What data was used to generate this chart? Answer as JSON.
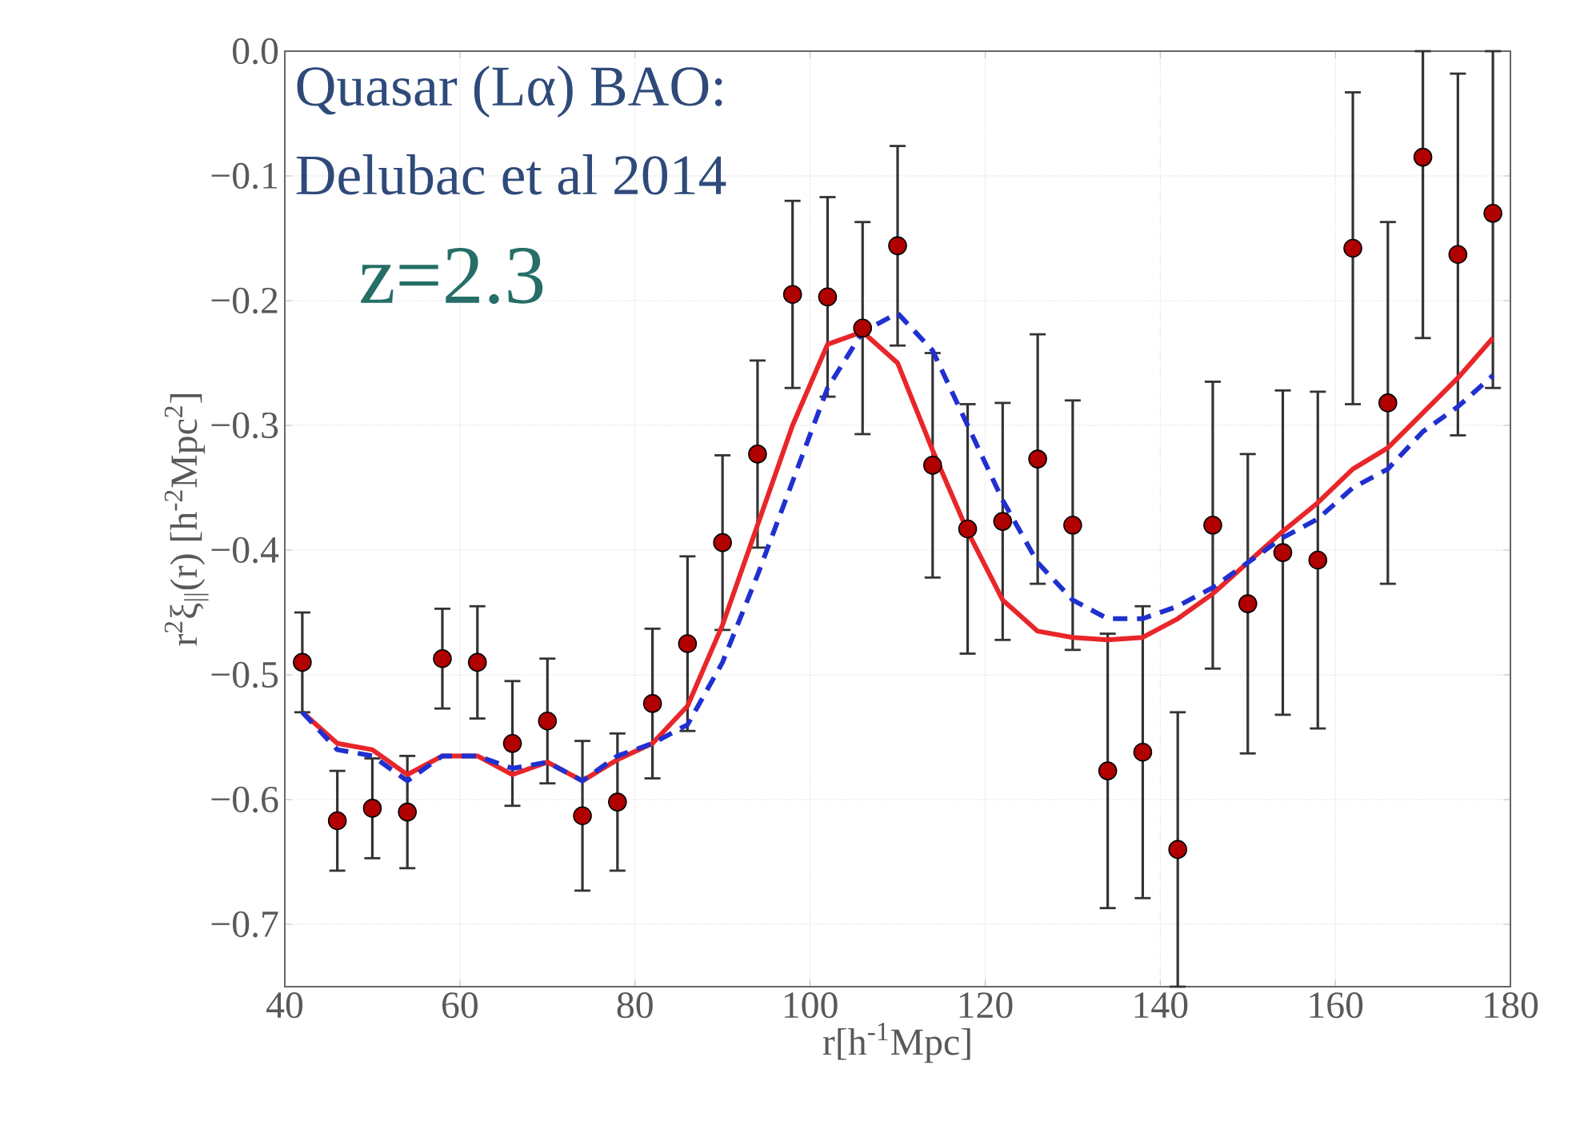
{
  "chart_data": {
    "type": "scatter",
    "xlabel": "r[h$^{-1}$Mpc]",
    "ylabel": "r$^{2}$ξ$_{||}$(r) [h$^{-2}$Mpc$^{2}$]",
    "annotations": [
      "Quasar (Lα) BAO:",
      "Delubac et al 2014",
      "z=2.3"
    ],
    "xlim": [
      40,
      180
    ],
    "ylim": [
      -0.75,
      0
    ],
    "xticks": [
      40,
      60,
      80,
      100,
      120,
      140,
      160,
      180
    ],
    "yticks": [
      {
        "value": 0,
        "label": "0.0"
      },
      {
        "value": -0.1,
        "label": "−0.1"
      },
      {
        "value": -0.2,
        "label": "−0.2"
      },
      {
        "value": -0.3,
        "label": "−0.3"
      },
      {
        "value": -0.4,
        "label": "−0.4"
      },
      {
        "value": -0.5,
        "label": "−0.5"
      },
      {
        "value": -0.6,
        "label": "−0.6"
      },
      {
        "value": -0.7,
        "label": "−0.7"
      }
    ],
    "grid": true,
    "series": [
      {
        "color": "#b00000",
        "marker": "circle",
        "x": [
          42,
          46,
          50,
          54,
          58,
          62,
          66,
          70,
          74,
          78,
          82,
          86,
          90,
          94,
          98,
          102,
          106,
          110,
          114,
          118,
          122,
          126,
          130,
          134,
          138,
          142,
          146,
          150,
          154,
          158,
          162,
          166,
          170,
          174,
          178
        ],
        "values": [
          -0.49,
          -0.617,
          -0.607,
          -0.61,
          -0.487,
          -0.49,
          -0.555,
          -0.537,
          -0.613,
          -0.602,
          -0.523,
          -0.475,
          -0.394,
          -0.323,
          -0.195,
          -0.197,
          -0.222,
          -0.156,
          -0.332,
          -0.383,
          -0.377,
          -0.327,
          -0.38,
          -0.577,
          -0.562,
          -0.64,
          -0.38,
          -0.443,
          -0.402,
          -0.408,
          -0.158,
          -0.282,
          -0.085,
          -0.163,
          -0.13
        ],
        "errors": [
          0.04,
          0.04,
          0.04,
          0.045,
          0.04,
          0.045,
          0.05,
          0.05,
          0.06,
          0.055,
          0.06,
          0.07,
          0.07,
          0.075,
          0.075,
          0.08,
          0.085,
          0.08,
          0.09,
          0.1,
          0.095,
          0.1,
          0.1,
          0.11,
          0.117,
          0.11,
          0.115,
          0.12,
          0.13,
          0.135,
          0.125,
          0.145,
          [
            -0.23,
            0
          ],
          0.145,
          [
            -0.27,
            0
          ]
        ]
      },
      {
        "type": "line",
        "color": "#e8262a",
        "line_style": "solid",
        "marker": "none",
        "x": [
          42,
          46,
          50,
          54,
          58,
          62,
          66,
          70,
          74,
          78,
          82,
          86,
          90,
          94,
          98,
          102,
          106,
          110,
          114,
          118,
          122,
          126,
          130,
          134,
          138,
          142,
          146,
          150,
          154,
          158,
          162,
          166,
          170,
          174,
          178
        ],
        "values": [
          -0.53,
          -0.555,
          -0.56,
          -0.58,
          -0.565,
          -0.565,
          -0.58,
          -0.57,
          -0.585,
          -0.568,
          -0.555,
          -0.525,
          -0.46,
          -0.38,
          -0.3,
          -0.235,
          -0.225,
          -0.25,
          -0.32,
          -0.385,
          -0.44,
          -0.465,
          -0.47,
          -0.472,
          -0.47,
          -0.455,
          -0.435,
          -0.41,
          -0.385,
          -0.362,
          -0.335,
          -0.318,
          -0.29,
          -0.262,
          -0.23
        ]
      },
      {
        "type": "line",
        "color": "#2030d0",
        "line_style": "dashed",
        "marker": "none",
        "x": [
          42,
          46,
          50,
          54,
          58,
          62,
          66,
          70,
          74,
          78,
          82,
          86,
          90,
          94,
          98,
          102,
          106,
          110,
          114,
          118,
          122,
          126,
          130,
          134,
          138,
          142,
          146,
          150,
          154,
          158,
          162,
          166,
          170,
          174,
          178
        ],
        "values": [
          -0.53,
          -0.56,
          -0.565,
          -0.585,
          -0.565,
          -0.565,
          -0.575,
          -0.57,
          -0.585,
          -0.565,
          -0.555,
          -0.54,
          -0.49,
          -0.42,
          -0.345,
          -0.27,
          -0.225,
          -0.21,
          -0.24,
          -0.3,
          -0.36,
          -0.41,
          -0.44,
          -0.455,
          -0.455,
          -0.445,
          -0.43,
          -0.41,
          -0.39,
          -0.375,
          -0.35,
          -0.335,
          -0.305,
          -0.285,
          -0.26
        ]
      }
    ]
  }
}
